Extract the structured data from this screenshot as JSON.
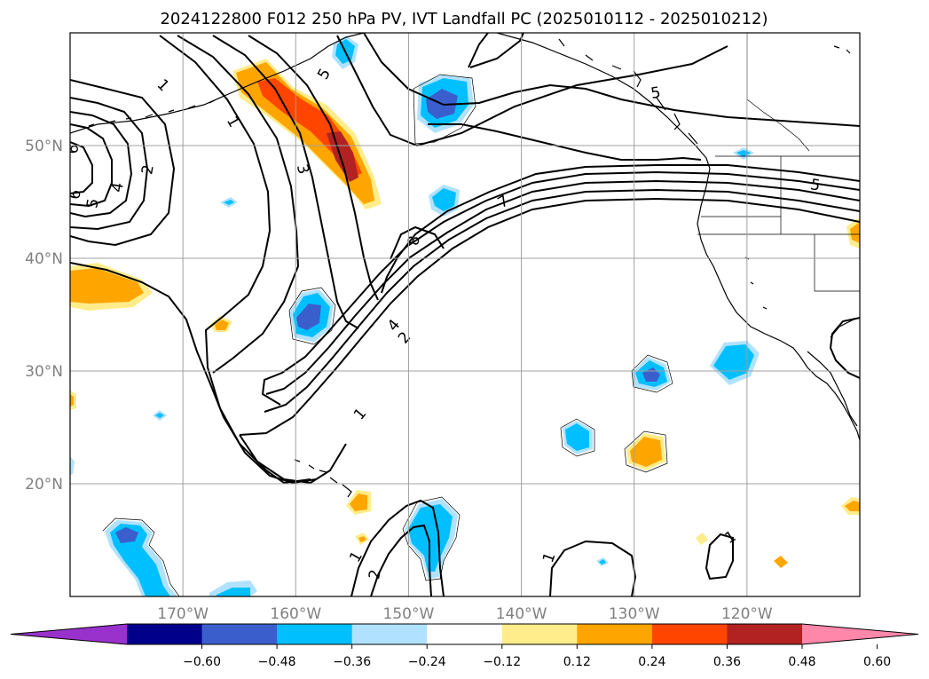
{
  "title": "2024122800 F012 250 hPa PV, IVT Landfall PC (2025010112 - 2025010212)",
  "map": {
    "lon_range": [
      -180,
      -110
    ],
    "lat_range": [
      10,
      60
    ],
    "lon_ticks": [
      {
        "lon": -170,
        "label": "170°W"
      },
      {
        "lon": -160,
        "label": "160°W"
      },
      {
        "lon": -150,
        "label": "150°W"
      },
      {
        "lon": -140,
        "label": "140°W"
      },
      {
        "lon": -130,
        "label": "130°W"
      },
      {
        "lon": -120,
        "label": "120°W"
      }
    ],
    "lat_ticks": [
      {
        "lat": 20,
        "label": "20°N"
      },
      {
        "lat": 30,
        "label": "30°N"
      },
      {
        "lat": 40,
        "label": "40°N"
      },
      {
        "lat": 50,
        "label": "50°N"
      }
    ],
    "gridlines": true,
    "contour_labels": [
      "1",
      "1",
      "1",
      "1",
      "1",
      "1",
      "2",
      "2",
      "2",
      "3",
      "4",
      "4",
      "5",
      "5",
      "5",
      "5",
      "6",
      "6",
      "7",
      "8"
    ]
  },
  "colorbar": {
    "ticks": [
      "−0.60",
      "−0.48",
      "−0.36",
      "−0.24",
      "−0.12",
      "0.12",
      "0.24",
      "0.36",
      "0.48",
      "0.60"
    ],
    "colors": [
      "#9932cc",
      "#00008b",
      "#3a5fcd",
      "#00bfff",
      "#b0e2ff",
      "#ffffff",
      "#ffec8b",
      "#ffa500",
      "#ff4500",
      "#b22222",
      "#ff88aa"
    ]
  }
}
